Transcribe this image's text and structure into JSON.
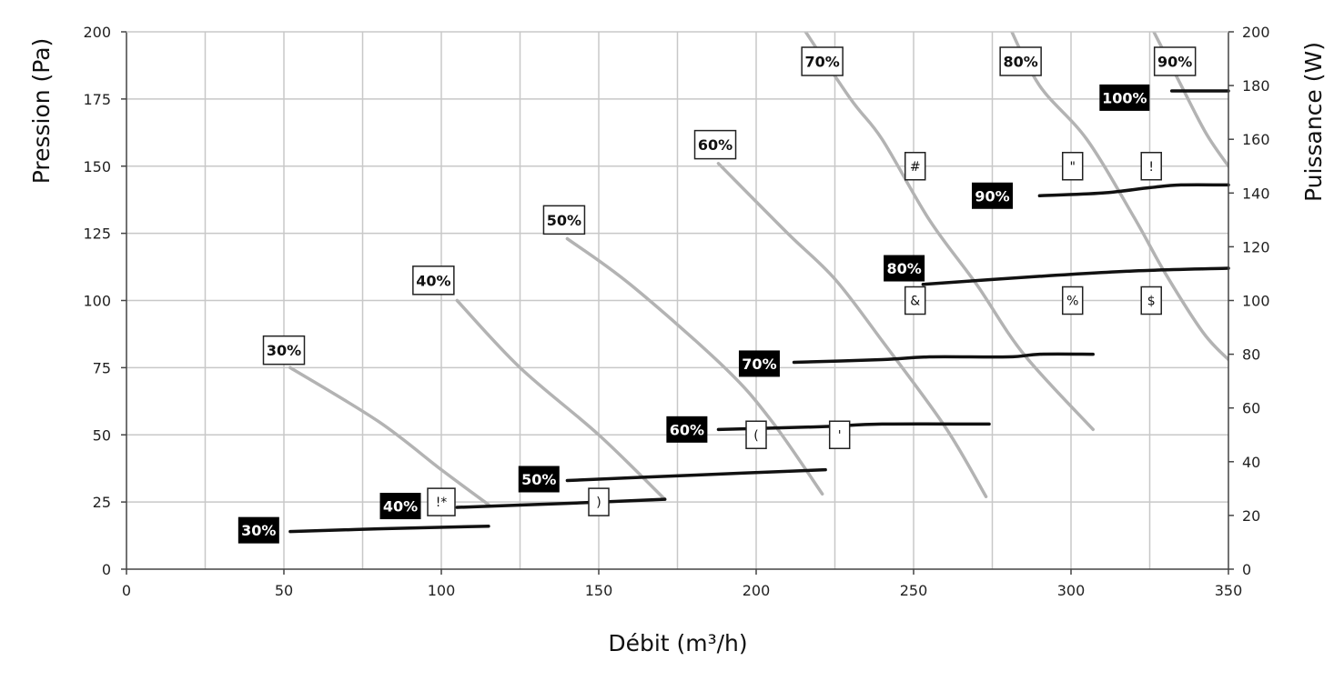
{
  "chart_data": {
    "type": "line",
    "xlabel": "Débit (m³/h)",
    "ylabel": "Pression (Pa)",
    "y2label": "Puissance (W)",
    "xlim": [
      0,
      350
    ],
    "ylim": [
      0,
      200
    ],
    "y2lim": [
      0,
      200
    ],
    "x_ticks": [
      0,
      50,
      100,
      150,
      200,
      250,
      300,
      350
    ],
    "y_ticks": [
      0,
      25,
      50,
      75,
      100,
      125,
      150,
      175,
      200
    ],
    "y2_ticks": [
      0,
      20,
      40,
      60,
      80,
      100,
      120,
      140,
      160,
      180,
      200
    ],
    "grid": true,
    "colors": {
      "pressure": "#b3b3b3",
      "power": "#111111",
      "grid": "#c8c8c8"
    },
    "pressure_series": [
      {
        "name": "30%",
        "points": [
          [
            52,
            75
          ],
          [
            80,
            55
          ],
          [
            100,
            37
          ],
          [
            115,
            24
          ]
        ]
      },
      {
        "name": "40%",
        "points": [
          [
            105,
            100
          ],
          [
            125,
            75
          ],
          [
            150,
            50
          ],
          [
            171,
            26
          ]
        ]
      },
      {
        "name": "50%",
        "points": [
          [
            140,
            123
          ],
          [
            160,
            106
          ],
          [
            190,
            75
          ],
          [
            205,
            55
          ],
          [
            221,
            28
          ]
        ]
      },
      {
        "name": "60%",
        "points": [
          [
            188,
            151
          ],
          [
            210,
            125
          ],
          [
            225,
            108
          ],
          [
            240,
            85
          ],
          [
            260,
            53
          ],
          [
            273,
            27
          ]
        ]
      },
      {
        "name": "70%",
        "points": [
          [
            214,
            203
          ],
          [
            230,
            175
          ],
          [
            240,
            160
          ],
          [
            255,
            130
          ],
          [
            270,
            106
          ],
          [
            285,
            80
          ],
          [
            307,
            52
          ]
        ]
      },
      {
        "name": "80%",
        "points": [
          [
            280,
            203
          ],
          [
            290,
            180
          ],
          [
            305,
            160
          ],
          [
            320,
            131
          ],
          [
            330,
            110
          ],
          [
            342,
            88
          ],
          [
            350,
            78
          ]
        ]
      },
      {
        "name": "90%",
        "points": [
          [
            325,
            203
          ],
          [
            335,
            180
          ],
          [
            343,
            162
          ],
          [
            350,
            150
          ]
        ]
      }
    ],
    "power_series": [
      {
        "name": "30%",
        "points": [
          [
            52,
            14
          ],
          [
            80,
            15
          ],
          [
            115,
            16
          ]
        ]
      },
      {
        "name": "40%",
        "points": [
          [
            105,
            23
          ],
          [
            140,
            24.5
          ],
          [
            171,
            26
          ]
        ]
      },
      {
        "name": "50%",
        "points": [
          [
            140,
            33
          ],
          [
            180,
            35
          ],
          [
            222,
            37
          ]
        ]
      },
      {
        "name": "60%",
        "points": [
          [
            188,
            52
          ],
          [
            220,
            53
          ],
          [
            240,
            54
          ],
          [
            274,
            54
          ]
        ]
      },
      {
        "name": "70%",
        "points": [
          [
            212,
            77
          ],
          [
            240,
            78
          ],
          [
            255,
            79
          ],
          [
            280,
            79
          ],
          [
            290,
            80
          ],
          [
            307,
            80
          ]
        ]
      },
      {
        "name": "80%",
        "points": [
          [
            253,
            106
          ],
          [
            290,
            109
          ],
          [
            320,
            111
          ],
          [
            350,
            112
          ]
        ]
      },
      {
        "name": "90%",
        "points": [
          [
            290,
            139
          ],
          [
            310,
            140
          ],
          [
            325,
            142
          ],
          [
            335,
            143
          ],
          [
            350,
            143
          ]
        ]
      },
      {
        "name": "100%",
        "points": [
          [
            332,
            178
          ],
          [
            350,
            178
          ]
        ]
      }
    ],
    "pressure_labels": [
      {
        "text": "30%",
        "x": 50,
        "y": 81.5
      },
      {
        "text": "40%",
        "x": 97.5,
        "y": 107.5
      },
      {
        "text": "50%",
        "x": 139,
        "y": 130
      },
      {
        "text": "60%",
        "x": 187,
        "y": 158
      },
      {
        "text": "70%",
        "x": 221,
        "y": 189
      },
      {
        "text": "80%",
        "x": 284,
        "y": 189
      },
      {
        "text": "90%",
        "x": 333,
        "y": 189
      }
    ],
    "power_labels": [
      {
        "text": "30%",
        "x": 42,
        "y": 14.5
      },
      {
        "text": "40%",
        "x": 87,
        "y": 23.5
      },
      {
        "text": "50%",
        "x": 131,
        "y": 33.5
      },
      {
        "text": "60%",
        "x": 178,
        "y": 52
      },
      {
        "text": "70%",
        "x": 201,
        "y": 76.5
      },
      {
        "text": "80%",
        "x": 247,
        "y": 112
      },
      {
        "text": "90%",
        "x": 275,
        "y": 139
      },
      {
        "text": "100%",
        "x": 317,
        "y": 175.5
      }
    ],
    "point_markers": [
      {
        "text": "#",
        "x": 250.5,
        "y": 150
      },
      {
        "text": "\"",
        "x": 300.5,
        "y": 150
      },
      {
        "text": "!",
        "x": 325.5,
        "y": 150
      },
      {
        "text": "&",
        "x": 250.5,
        "y": 100
      },
      {
        "text": "%",
        "x": 300.5,
        "y": 100
      },
      {
        "text": "$",
        "x": 325.5,
        "y": 100
      },
      {
        "text": "(",
        "x": 200,
        "y": 50
      },
      {
        "text": "'",
        "x": 226.5,
        "y": 50
      },
      {
        "text": "!*",
        "x": 100,
        "y": 25
      },
      {
        "text": ")",
        "x": 150,
        "y": 25
      }
    ]
  }
}
